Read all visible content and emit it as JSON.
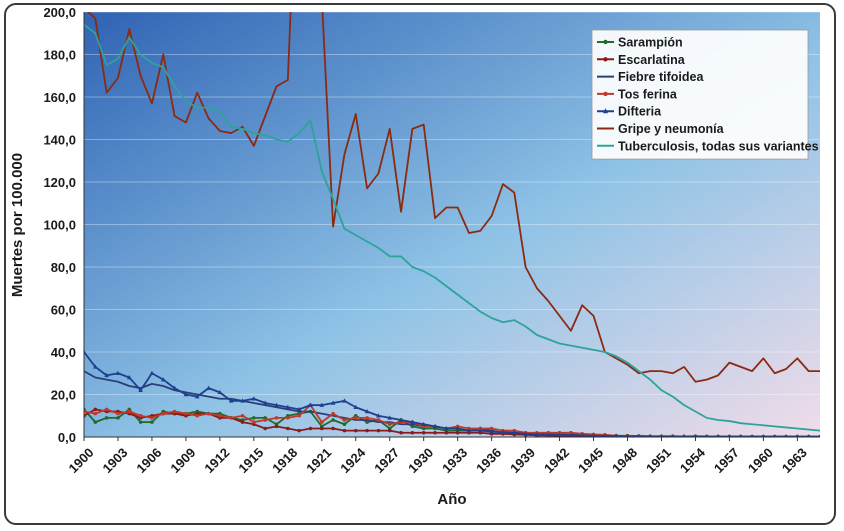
{
  "chart_data": {
    "type": "line",
    "xlabel": "Año",
    "ylabel": "Muertes por 100.000",
    "ylim": [
      0,
      200
    ],
    "yticks": [
      "0,0",
      "20,0",
      "40,0",
      "60,0",
      "80,0",
      "100,0",
      "120,0",
      "140,0",
      "160,0",
      "180,0",
      "200,0"
    ],
    "xlim": [
      1900,
      1965
    ],
    "xticks": [
      "1900",
      "1903",
      "1906",
      "1909",
      "1912",
      "1915",
      "1918",
      "1921",
      "1924",
      "1927",
      "1930",
      "1933",
      "1936",
      "1939",
      "1942",
      "1945",
      "1948",
      "1951",
      "1954",
      "1957",
      "1960",
      "1963"
    ],
    "grid": true,
    "legend_position": "top-right",
    "background": {
      "top_left": "#2f63b4",
      "top_right": "#8fc3e6",
      "bottom_left": "#6aa6d8",
      "bottom_right": "#f1dce9"
    },
    "series": [
      {
        "name": "Sarampión",
        "color": "#1f6b2a",
        "marker": "circle",
        "x": [
          1900,
          1901,
          1902,
          1903,
          1904,
          1905,
          1906,
          1907,
          1908,
          1909,
          1910,
          1911,
          1912,
          1913,
          1914,
          1915,
          1916,
          1917,
          1918,
          1919,
          1920,
          1921,
          1922,
          1923,
          1924,
          1925,
          1926,
          1927,
          1928,
          1929,
          1930,
          1931,
          1932,
          1933,
          1934,
          1935,
          1936,
          1937,
          1938,
          1939,
          1940,
          1941,
          1942,
          1943,
          1944,
          1945,
          1946,
          1947,
          1948,
          1949,
          1950,
          1951,
          1952,
          1953,
          1954,
          1955,
          1956,
          1957,
          1958,
          1959,
          1960,
          1961,
          1962,
          1963,
          1964,
          1965
        ],
        "y": [
          13,
          7,
          9,
          9,
          13,
          7,
          7,
          12,
          11,
          11,
          12,
          11,
          11,
          9,
          8,
          9,
          9,
          6,
          10,
          11,
          12,
          5,
          8,
          6,
          10,
          7,
          8,
          4,
          8,
          5,
          4,
          4,
          3,
          3,
          3,
          4,
          3,
          2,
          2,
          2,
          1,
          2,
          2,
          2,
          1,
          1,
          1,
          0.6,
          0.6,
          0.5,
          0.3,
          0.4,
          0.4,
          0.3,
          0.4,
          0.3,
          0.3,
          0.3,
          0.3,
          0.2,
          0.2,
          0.2,
          0.2,
          0.2,
          0.2,
          0.1
        ]
      },
      {
        "name": "Escarlatina",
        "color": "#8b1a1a",
        "marker": "circle",
        "x": [
          1900,
          1901,
          1902,
          1903,
          1904,
          1905,
          1906,
          1907,
          1908,
          1909,
          1910,
          1911,
          1912,
          1913,
          1914,
          1915,
          1916,
          1917,
          1918,
          1919,
          1920,
          1921,
          1922,
          1923,
          1924,
          1925,
          1926,
          1927,
          1928,
          1929,
          1930,
          1931,
          1932,
          1933,
          1934,
          1935,
          1936,
          1937,
          1938,
          1939,
          1940,
          1941,
          1942,
          1943,
          1944,
          1945,
          1946,
          1947,
          1948,
          1949,
          1950,
          1951,
          1952,
          1953,
          1954,
          1955,
          1956,
          1957,
          1958,
          1959,
          1960,
          1961,
          1962,
          1963,
          1964,
          1965
        ],
        "y": [
          10,
          13,
          12,
          12,
          11,
          9,
          10,
          11,
          11,
          10,
          11,
          11,
          9,
          9,
          7,
          6,
          4,
          5,
          4,
          3,
          4,
          4,
          4,
          3,
          3,
          3,
          3,
          3,
          2,
          2,
          2,
          2,
          2,
          2,
          2,
          2,
          1.5,
          1.5,
          1.2,
          1,
          0.8,
          0.7,
          0.6,
          0.6,
          0.5,
          0.4,
          0.3,
          0.3,
          0.2,
          0.2,
          0.2,
          0.1,
          0.1,
          0.1,
          0.1,
          0.1,
          0.1,
          0.1,
          0.1,
          0.1,
          0.1,
          0.1,
          0.1,
          0.1,
          0.1,
          0.1
        ]
      },
      {
        "name": "Fiebre tifoidea",
        "color": "#2c3e78",
        "marker": "none",
        "x": [
          1900,
          1901,
          1902,
          1903,
          1904,
          1905,
          1906,
          1907,
          1908,
          1909,
          1910,
          1911,
          1912,
          1913,
          1914,
          1915,
          1916,
          1917,
          1918,
          1919,
          1920,
          1921,
          1922,
          1923,
          1924,
          1925,
          1926,
          1927,
          1928,
          1929,
          1930,
          1931,
          1932,
          1933,
          1934,
          1935,
          1936,
          1937,
          1938,
          1939,
          1940,
          1941,
          1942,
          1943,
          1944,
          1945,
          1946,
          1947,
          1948,
          1949,
          1950,
          1951,
          1952,
          1953,
          1954,
          1955,
          1956,
          1957,
          1958,
          1959,
          1960,
          1961,
          1962,
          1963,
          1964,
          1965
        ],
        "y": [
          31,
          28,
          27,
          26,
          24,
          23,
          25,
          24,
          22,
          21,
          20,
          19,
          18,
          18,
          17,
          16,
          15,
          14,
          13,
          12,
          12,
          11,
          10,
          9,
          8,
          8,
          7,
          7,
          6,
          6,
          5,
          5,
          4,
          4,
          3,
          3,
          3,
          2,
          2,
          2,
          1.5,
          1.5,
          1.2,
          1,
          1,
          0.8,
          0.6,
          0.5,
          0.4,
          0.3,
          0.3,
          0.2,
          0.2,
          0.2,
          0.1,
          0.1,
          0.1,
          0.1,
          0.1,
          0.1,
          0.1,
          0.1,
          0.1,
          0.1,
          0.1,
          0.1
        ]
      },
      {
        "name": "Tos ferina",
        "color": "#c0392b",
        "marker": "circle",
        "x": [
          1900,
          1901,
          1902,
          1903,
          1904,
          1905,
          1906,
          1907,
          1908,
          1909,
          1910,
          1911,
          1912,
          1913,
          1914,
          1915,
          1916,
          1917,
          1918,
          1919,
          1920,
          1921,
          1922,
          1923,
          1924,
          1925,
          1926,
          1927,
          1928,
          1929,
          1930,
          1931,
          1932,
          1933,
          1934,
          1935,
          1936,
          1937,
          1938,
          1939,
          1940,
          1941,
          1942,
          1943,
          1944,
          1945,
          1946,
          1947,
          1948,
          1949,
          1950,
          1951,
          1952,
          1953,
          1954,
          1955,
          1956,
          1957,
          1958,
          1959,
          1960,
          1961,
          1962,
          1963,
          1964,
          1965
        ],
        "y": [
          12,
          11,
          13,
          11,
          12,
          10,
          9,
          11,
          12,
          11,
          10,
          11,
          10,
          9,
          10,
          7,
          8,
          9,
          9,
          10,
          15,
          7,
          11,
          8,
          9,
          9,
          8,
          6,
          7,
          7,
          5,
          5,
          4,
          5,
          4,
          4,
          4,
          3,
          3,
          2,
          2,
          2,
          1.8,
          2,
          1.5,
          1.2,
          1,
          0.6,
          0.5,
          0.4,
          0.4,
          0.3,
          0.3,
          0.3,
          0.2,
          0.2,
          0.2,
          0.1,
          0.1,
          0.1,
          0.1,
          0.1,
          0.1,
          0.1,
          0.1,
          0.1
        ]
      },
      {
        "name": "Difteria",
        "color": "#1f3f8f",
        "marker": "triangle",
        "x": [
          1900,
          1901,
          1902,
          1903,
          1904,
          1905,
          1906,
          1907,
          1908,
          1909,
          1910,
          1911,
          1912,
          1913,
          1914,
          1915,
          1916,
          1917,
          1918,
          1919,
          1920,
          1921,
          1922,
          1923,
          1924,
          1925,
          1926,
          1927,
          1928,
          1929,
          1930,
          1931,
          1932,
          1933,
          1934,
          1935,
          1936,
          1937,
          1938,
          1939,
          1940,
          1941,
          1942,
          1943,
          1944,
          1945,
          1946,
          1947,
          1948,
          1949,
          1950,
          1951,
          1952,
          1953,
          1954,
          1955,
          1956,
          1957,
          1958,
          1959,
          1960,
          1961,
          1962,
          1963,
          1964,
          1965
        ],
        "y": [
          40,
          33,
          29,
          30,
          28,
          22,
          30,
          27,
          23,
          20,
          19,
          23,
          21,
          17,
          17,
          18,
          16,
          15,
          14,
          13,
          15,
          15,
          16,
          17,
          14,
          12,
          10,
          9,
          8,
          7,
          6,
          5,
          4,
          4,
          3,
          3,
          2.5,
          2.2,
          2,
          1.5,
          1.2,
          1,
          0.9,
          0.8,
          0.7,
          0.6,
          0.5,
          0.4,
          0.3,
          0.2,
          0.2,
          0.1,
          0.1,
          0.1,
          0.1,
          0.1,
          0.1,
          0.1,
          0.1,
          0.1,
          0.1,
          0.1,
          0.1,
          0.1,
          0.1,
          0.1
        ]
      },
      {
        "name": "Gripe y neumonía",
        "color": "#8b2a12",
        "marker": "none",
        "x": [
          1900,
          1901,
          1902,
          1903,
          1904,
          1905,
          1906,
          1907,
          1908,
          1909,
          1910,
          1911,
          1912,
          1913,
          1914,
          1915,
          1916,
          1917,
          1918,
          1919,
          1920,
          1921,
          1922,
          1923,
          1924,
          1925,
          1926,
          1927,
          1928,
          1929,
          1930,
          1931,
          1932,
          1933,
          1934,
          1935,
          1936,
          1937,
          1938,
          1939,
          1940,
          1941,
          1942,
          1943,
          1944,
          1945,
          1946,
          1947,
          1948,
          1949,
          1950,
          1951,
          1952,
          1953,
          1954,
          1955,
          1956,
          1957,
          1958,
          1959,
          1960,
          1961,
          1962,
          1963,
          1964,
          1965
        ],
        "y": [
          202,
          197,
          162,
          169,
          192,
          170,
          157,
          180,
          151,
          148,
          162,
          150,
          144,
          143,
          146,
          137,
          151,
          165,
          168,
          300,
          300,
          207,
          99,
          133,
          152,
          117,
          124,
          145,
          106,
          145,
          147,
          103,
          108,
          108,
          96,
          97,
          104,
          119,
          115,
          80,
          70,
          64,
          57,
          50,
          62,
          57,
          40,
          37,
          34,
          30,
          31,
          31,
          30,
          33,
          26,
          27,
          29,
          35,
          33,
          31,
          37,
          30,
          32,
          37,
          31,
          31
        ]
      },
      {
        "name": "Tuberculosis, todas sus variantes",
        "color": "#2ea39a",
        "marker": "none",
        "x": [
          1900,
          1901,
          1902,
          1903,
          1904,
          1905,
          1906,
          1907,
          1908,
          1909,
          1910,
          1911,
          1912,
          1913,
          1914,
          1915,
          1916,
          1917,
          1918,
          1919,
          1920,
          1921,
          1922,
          1923,
          1924,
          1925,
          1926,
          1927,
          1928,
          1929,
          1930,
          1931,
          1932,
          1933,
          1934,
          1935,
          1936,
          1937,
          1938,
          1939,
          1940,
          1941,
          1942,
          1943,
          1944,
          1945,
          1946,
          1947,
          1948,
          1949,
          1950,
          1951,
          1952,
          1953,
          1954,
          1955,
          1956,
          1957,
          1958,
          1959,
          1960,
          1961,
          1962,
          1963,
          1964,
          1965
        ],
        "y": [
          194,
          190,
          175,
          178,
          188,
          180,
          176,
          174,
          165,
          158,
          155,
          155,
          153,
          146,
          145,
          143,
          142,
          140,
          139,
          143,
          149,
          125,
          112,
          98,
          95,
          92,
          89,
          85,
          85,
          80,
          78,
          75,
          71,
          67,
          63,
          59,
          56,
          54,
          55,
          52,
          48,
          46,
          44,
          43,
          42,
          41,
          40,
          38,
          35,
          31,
          27,
          22,
          19,
          15,
          12,
          9,
          8,
          7.5,
          6.5,
          6,
          5.5,
          5,
          4.5,
          4,
          3.5,
          3
        ]
      }
    ]
  }
}
